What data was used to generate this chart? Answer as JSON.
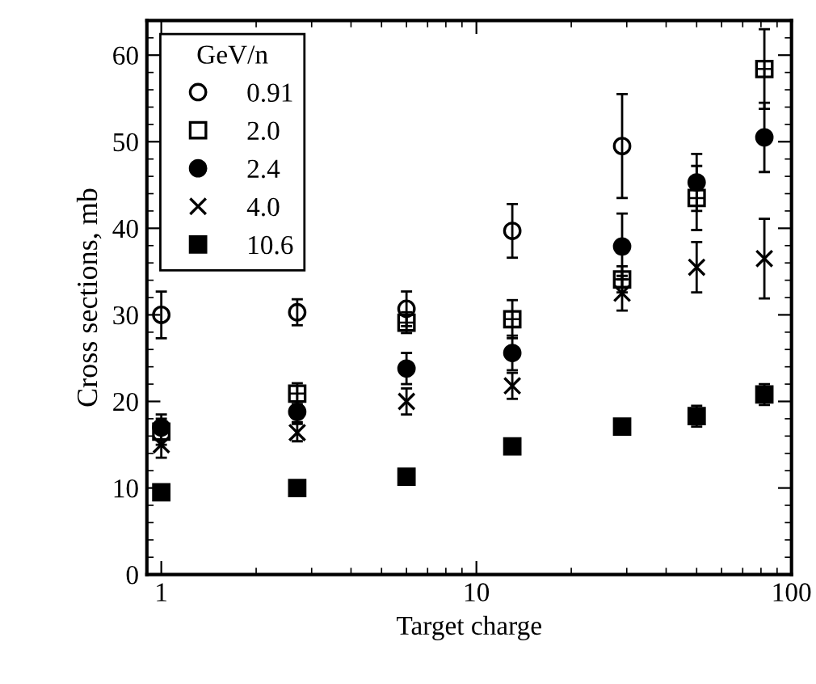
{
  "chart_data": {
    "type": "scatter",
    "xlabel": "Target charge",
    "ylabel": "Cross sections, mb",
    "legend_title": "GeV/n",
    "x": [
      1,
      2.7,
      6,
      13,
      29,
      50,
      82
    ],
    "series": [
      {
        "name": "0.91",
        "color": "#000000",
        "marker": "circle",
        "values": [
          30,
          30.3,
          30.7,
          39.7,
          49.5,
          null,
          null
        ],
        "errors": [
          2.7,
          1.5,
          2,
          3.1,
          6,
          null,
          null
        ]
      },
      {
        "name": "2.0",
        "color": "#000000",
        "marker": "square",
        "values": [
          16.5,
          20.9,
          29.1,
          29.5,
          34.1,
          43.5,
          58.4
        ],
        "errors": [
          1.5,
          1.2,
          1.2,
          2.2,
          1.5,
          3.7,
          4.6
        ]
      },
      {
        "name": "2.4",
        "color": "#000000",
        "marker": "circle",
        "values": [
          17,
          18.8,
          23.8,
          25.6,
          37.9,
          45.3,
          50.5
        ],
        "errors": [
          1.5,
          1.2,
          1.8,
          2,
          3.8,
          3.3,
          4
        ]
      },
      {
        "name": "4.0",
        "color": "#000000",
        "marker": "cross",
        "values": [
          15,
          16.4,
          20,
          21.8,
          32.5,
          35.5,
          36.5
        ],
        "errors": [
          1.5,
          1,
          1.5,
          1.5,
          2,
          2.9,
          4.6
        ]
      },
      {
        "name": "10.6",
        "color": "#000000",
        "marker": "square",
        "values": [
          9.5,
          10,
          11.3,
          14.8,
          17.1,
          18.3,
          20.8
        ],
        "errors": [
          null,
          null,
          null,
          null,
          null,
          1.2,
          1.2
        ]
      }
    ],
    "log": "x",
    "xlim": [
      0.9,
      100
    ],
    "xticks": [
      1,
      10,
      100
    ],
    "ylim": [
      0,
      64
    ],
    "yticks": [
      0,
      10,
      20,
      30,
      40,
      50,
      60
    ],
    "grid": false,
    "legend": "top left"
  }
}
